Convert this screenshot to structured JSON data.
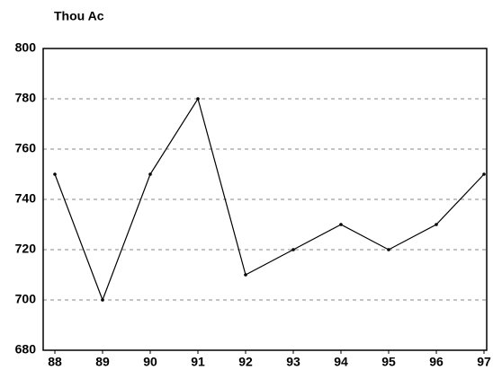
{
  "chart_data": {
    "type": "line",
    "ylabel": "Thou Ac",
    "categories": [
      "88",
      "89",
      "90",
      "91",
      "92",
      "93",
      "94",
      "95",
      "96",
      "97"
    ],
    "values": [
      750,
      700,
      750,
      780,
      710,
      720,
      730,
      720,
      730,
      750
    ],
    "color": "#000000",
    "ylim": [
      680,
      800
    ],
    "yticks": [
      680,
      700,
      720,
      740,
      760,
      780,
      800
    ],
    "grid": true
  }
}
